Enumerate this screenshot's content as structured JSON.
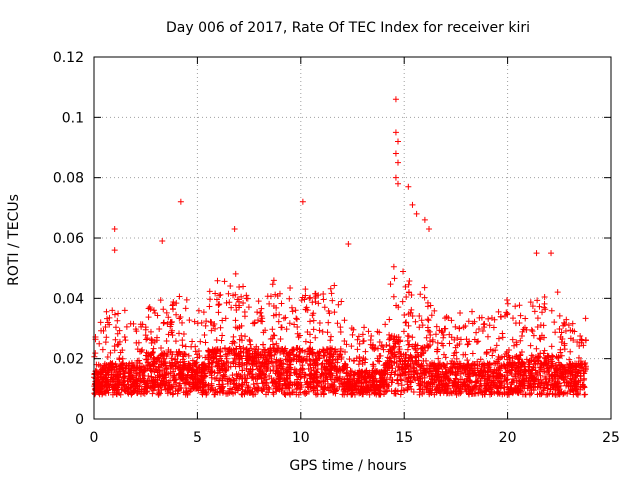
{
  "chart_data": {
    "type": "scatter",
    "title": "Day 006 of 2017, Rate Of TEC Index for receiver kiri",
    "xlabel": "GPS time / hours",
    "ylabel": "ROTI / TECUs",
    "xlim": [
      0,
      25
    ],
    "ylim": [
      0,
      0.12
    ],
    "x_ticks": [
      0,
      5,
      10,
      15,
      20,
      25
    ],
    "x_tick_labels": [
      "0",
      "5",
      "10",
      "15",
      "20",
      "25"
    ],
    "y_ticks": [
      0,
      0.02,
      0.04,
      0.06,
      0.08,
      0.1,
      0.12
    ],
    "y_tick_labels": [
      "0",
      "0.02",
      "0.04",
      "0.06",
      "0.08",
      "0.1",
      "0.12"
    ],
    "grid": true,
    "marker": "+",
    "color": "#ff0000",
    "series": [
      {
        "name": "ROTI",
        "x_range": [
          0,
          23.8
        ],
        "typical_band": [
          0.006,
          0.03
        ],
        "notable_points": [
          {
            "x": 1.0,
            "y": 0.063
          },
          {
            "x": 1.0,
            "y": 0.056
          },
          {
            "x": 3.3,
            "y": 0.059
          },
          {
            "x": 4.2,
            "y": 0.072
          },
          {
            "x": 6.8,
            "y": 0.063
          },
          {
            "x": 10.1,
            "y": 0.072
          },
          {
            "x": 12.3,
            "y": 0.058
          },
          {
            "x": 14.6,
            "y": 0.106
          },
          {
            "x": 14.6,
            "y": 0.095
          },
          {
            "x": 14.7,
            "y": 0.092
          },
          {
            "x": 14.6,
            "y": 0.088
          },
          {
            "x": 14.7,
            "y": 0.085
          },
          {
            "x": 14.6,
            "y": 0.08
          },
          {
            "x": 14.7,
            "y": 0.078
          },
          {
            "x": 15.2,
            "y": 0.077
          },
          {
            "x": 15.4,
            "y": 0.071
          },
          {
            "x": 15.6,
            "y": 0.068
          },
          {
            "x": 16.2,
            "y": 0.063
          },
          {
            "x": 16.0,
            "y": 0.066
          },
          {
            "x": 21.4,
            "y": 0.055
          },
          {
            "x": 22.1,
            "y": 0.055
          }
        ]
      }
    ]
  }
}
